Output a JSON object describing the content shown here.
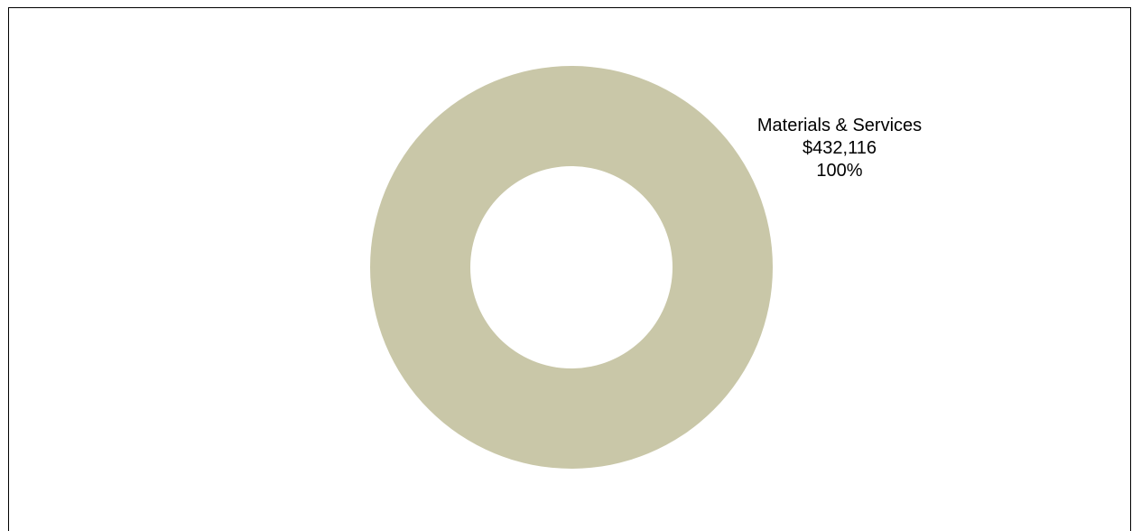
{
  "chart_data": {
    "type": "pie",
    "donut": true,
    "categories": [
      "Materials & Services"
    ],
    "values": [
      432116
    ],
    "percentages": [
      100
    ],
    "value_labels": [
      "$432,116"
    ],
    "percent_labels": [
      "100%"
    ],
    "colors": [
      "#c9c7a8"
    ],
    "title": "",
    "legend": "none",
    "data_labels": "outside-top-right"
  }
}
